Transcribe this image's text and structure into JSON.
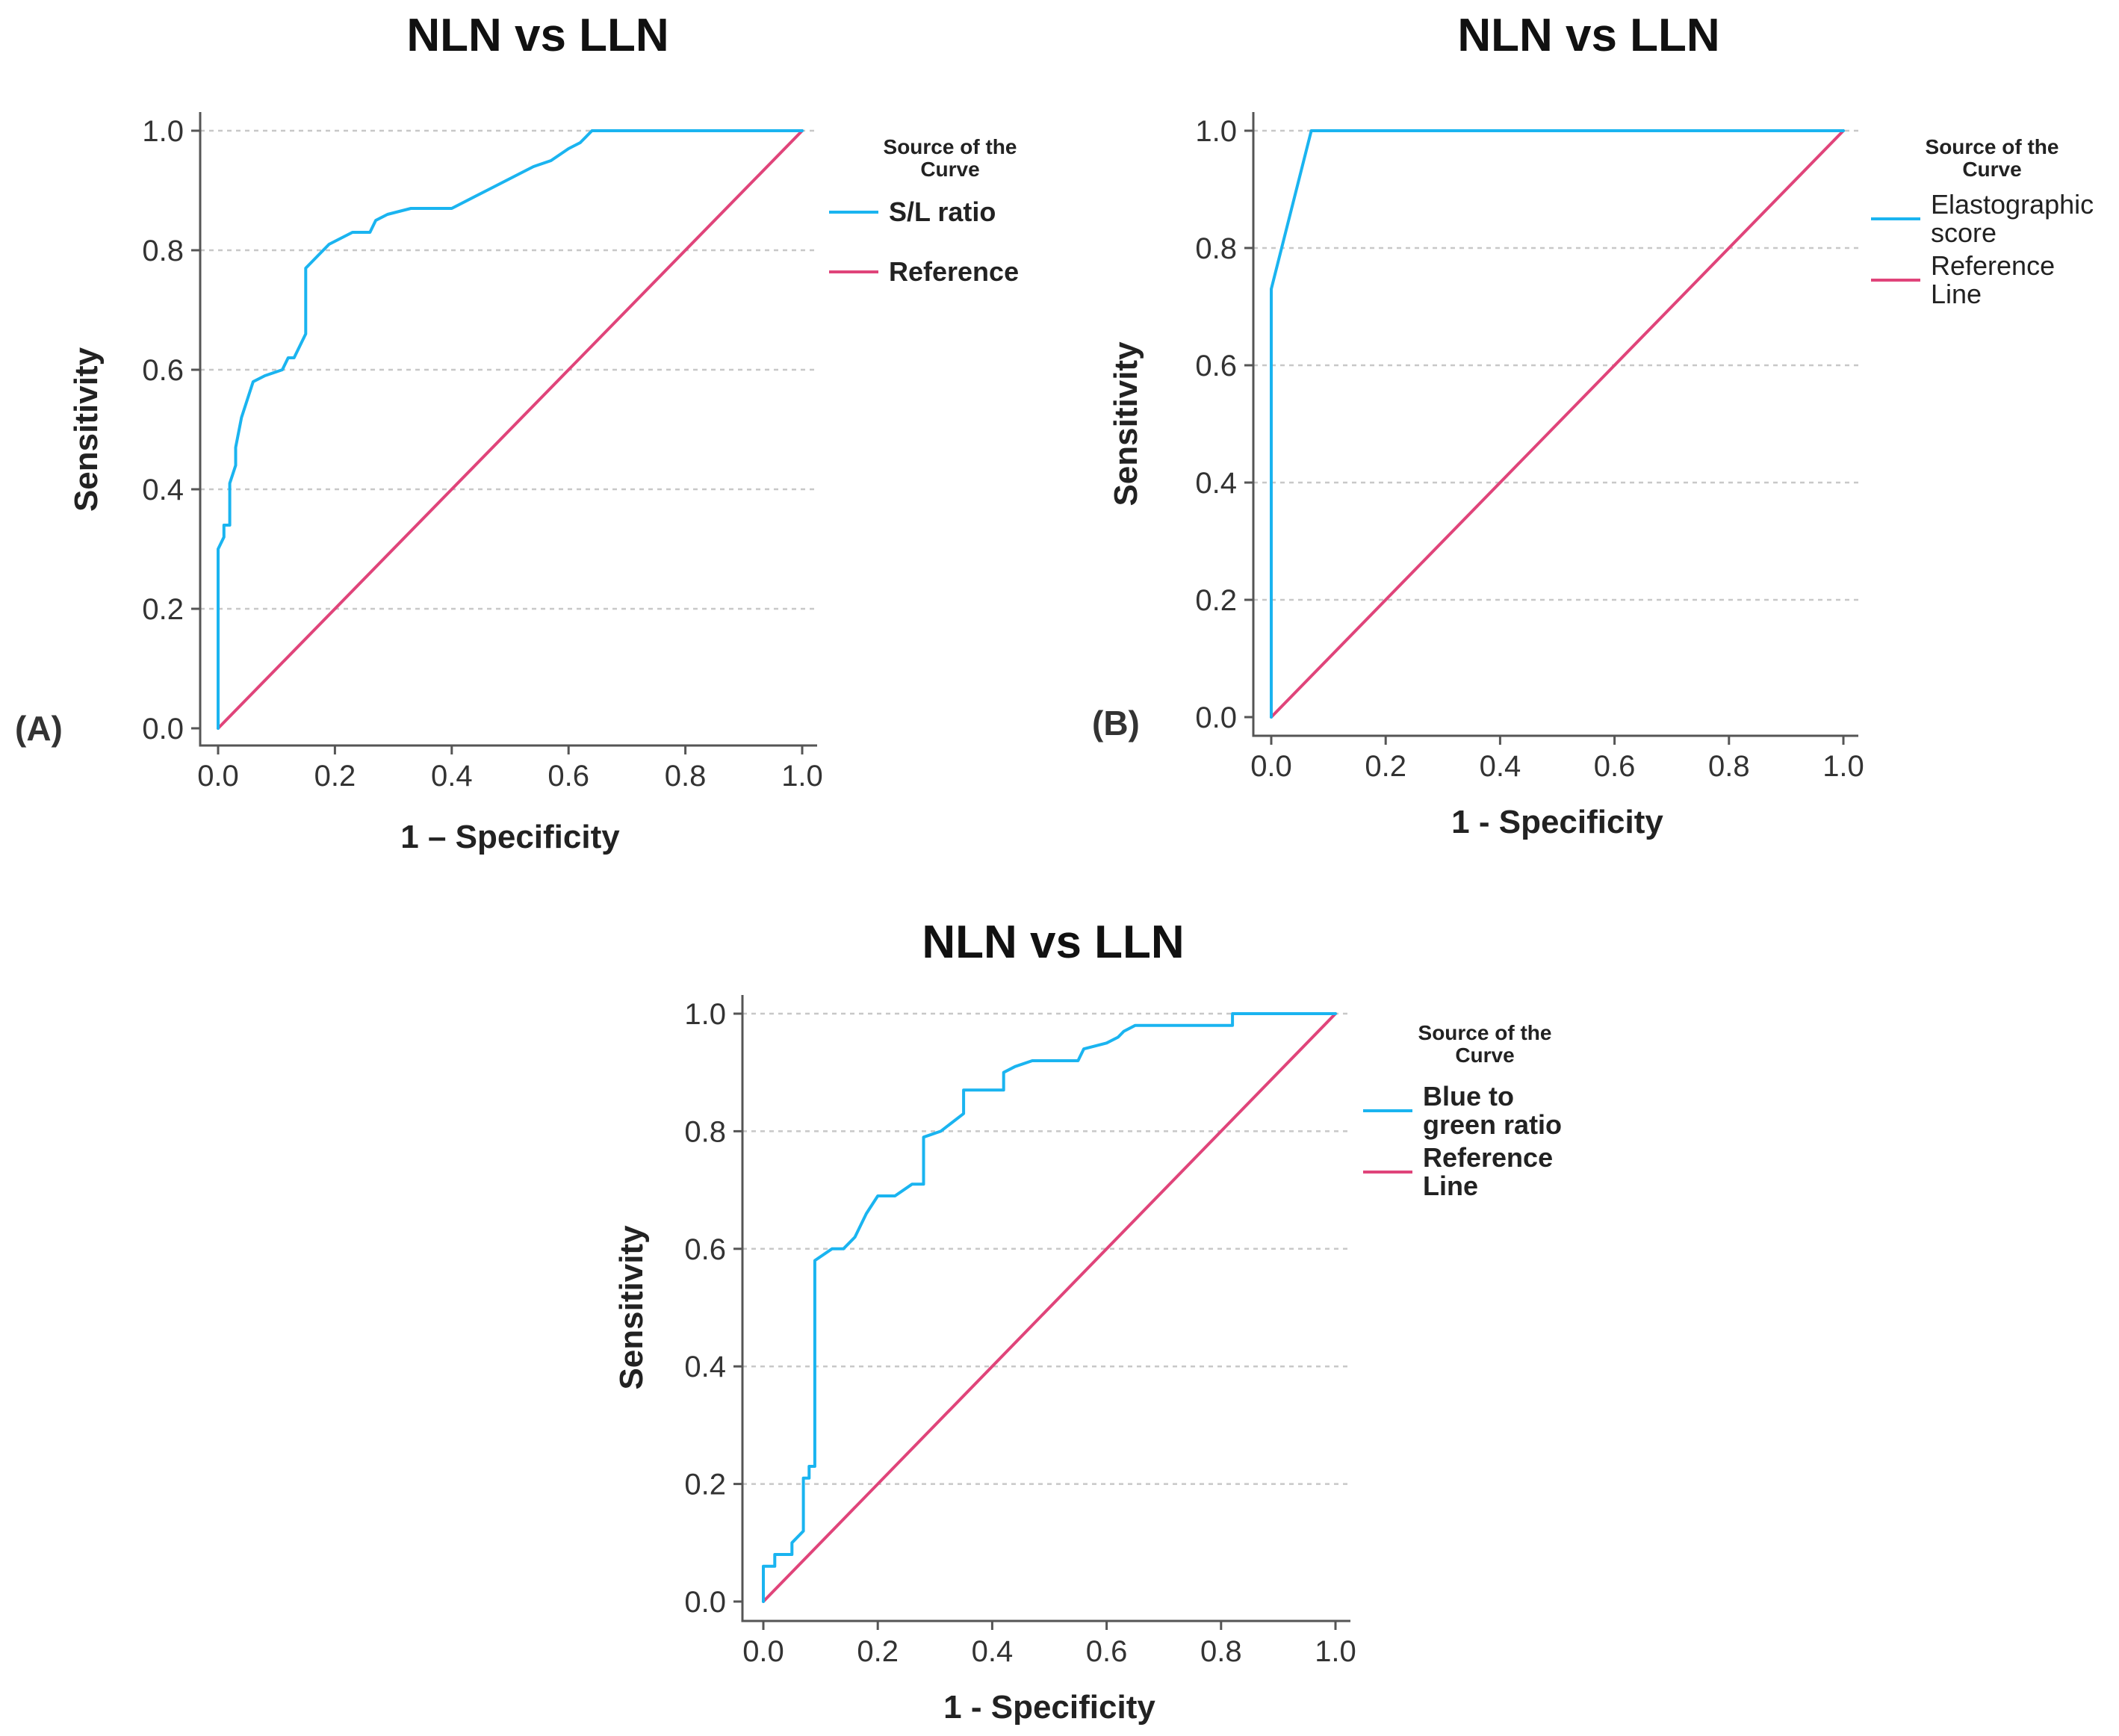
{
  "colors": {
    "roc_curve": "#1ab4f0",
    "reference_line": "#e0447a"
  },
  "chart_data": [
    {
      "id": "A",
      "panel_label": "(A)",
      "type": "line",
      "title": "NLN vs LLN",
      "xlabel": "1 – Specificity",
      "ylabel": "Sensitivity",
      "xlim": [
        0,
        1
      ],
      "ylim": [
        0,
        1
      ],
      "xticks": [
        "0.0",
        "0.2",
        "0.4",
        "0.6",
        "0.8",
        "1.0"
      ],
      "yticks": [
        "0.0",
        "0.2",
        "0.4",
        "0.6",
        "0.8",
        "1.0"
      ],
      "grid": "horizontal-dashed",
      "legend_title": [
        "Source of the",
        "Curve"
      ],
      "legend_bold": true,
      "series": [
        {
          "name": "S/L ratio",
          "label_lines": [
            "S/L ratio"
          ],
          "color": "#1ab4f0",
          "x": [
            0,
            0,
            0.01,
            0.01,
            0.02,
            0.02,
            0.03,
            0.03,
            0.04,
            0.05,
            0.06,
            0.08,
            0.11,
            0.12,
            0.13,
            0.14,
            0.15,
            0.15,
            0.17,
            0.19,
            0.23,
            0.26,
            0.27,
            0.29,
            0.33,
            0.4,
            0.46,
            0.52,
            0.54,
            0.57,
            0.6,
            0.62,
            0.63,
            0.64,
            1.0
          ],
          "y": [
            0,
            0.3,
            0.32,
            0.34,
            0.34,
            0.41,
            0.44,
            0.47,
            0.52,
            0.55,
            0.58,
            0.59,
            0.6,
            0.62,
            0.62,
            0.64,
            0.66,
            0.77,
            0.79,
            0.81,
            0.83,
            0.83,
            0.85,
            0.86,
            0.87,
            0.87,
            0.9,
            0.93,
            0.94,
            0.95,
            0.97,
            0.98,
            0.99,
            1.0,
            1.0
          ]
        },
        {
          "name": "Reference",
          "label_lines": [
            "Reference"
          ],
          "color": "#e0447a",
          "x": [
            0,
            1
          ],
          "y": [
            0,
            1
          ]
        }
      ]
    },
    {
      "id": "B",
      "panel_label": "(B)",
      "type": "line",
      "title": "NLN vs LLN",
      "xlabel": "1 - Specificity",
      "ylabel": "Sensitivity",
      "xlim": [
        0,
        1
      ],
      "ylim": [
        0,
        1
      ],
      "xticks": [
        "0.0",
        "0.2",
        "0.4",
        "0.6",
        "0.8",
        "1.0"
      ],
      "yticks": [
        "0.0",
        "0.2",
        "0.4",
        "0.6",
        "0.8",
        "1.0"
      ],
      "grid": "horizontal-dashed",
      "legend_title": [
        "Source of the",
        "Curve"
      ],
      "legend_bold": false,
      "series": [
        {
          "name": "Elastographic score",
          "label_lines": [
            "Elastographic",
            "score"
          ],
          "color": "#1ab4f0",
          "x": [
            0,
            0,
            0.07,
            1.0
          ],
          "y": [
            0,
            0.73,
            1.0,
            1.0
          ]
        },
        {
          "name": "Reference Line",
          "label_lines": [
            "Reference",
            "Line"
          ],
          "color": "#e0447a",
          "x": [
            0,
            1
          ],
          "y": [
            0,
            1
          ]
        }
      ]
    },
    {
      "id": "C",
      "panel_label": "",
      "type": "line",
      "title": "NLN vs LLN",
      "xlabel": "1 - Specificity",
      "ylabel": "Sensitivity",
      "xlim": [
        0,
        1
      ],
      "ylim": [
        0,
        1
      ],
      "xticks": [
        "0.0",
        "0.2",
        "0.4",
        "0.6",
        "0.8",
        "1.0"
      ],
      "yticks": [
        "0.0",
        "0.2",
        "0.4",
        "0.6",
        "0.8",
        "1.0"
      ],
      "grid": "horizontal-dashed",
      "legend_title": [
        "Source of the",
        "Curve"
      ],
      "legend_bold": true,
      "series": [
        {
          "name": "Blue to green ratio",
          "label_lines": [
            "Blue to",
            "green ratio"
          ],
          "color": "#1ab4f0",
          "x": [
            0,
            0,
            0.01,
            0.02,
            0.02,
            0.05,
            0.05,
            0.07,
            0.07,
            0.08,
            0.08,
            0.09,
            0.09,
            0.12,
            0.14,
            0.16,
            0.18,
            0.2,
            0.23,
            0.26,
            0.28,
            0.28,
            0.31,
            0.35,
            0.35,
            0.37,
            0.42,
            0.42,
            0.44,
            0.47,
            0.55,
            0.56,
            0.6,
            0.62,
            0.63,
            0.65,
            0.82,
            0.82,
            1.0
          ],
          "y": [
            0,
            0.06,
            0.06,
            0.06,
            0.08,
            0.08,
            0.1,
            0.12,
            0.21,
            0.21,
            0.23,
            0.23,
            0.58,
            0.6,
            0.6,
            0.62,
            0.66,
            0.69,
            0.69,
            0.71,
            0.71,
            0.79,
            0.8,
            0.83,
            0.87,
            0.87,
            0.87,
            0.9,
            0.91,
            0.92,
            0.92,
            0.94,
            0.95,
            0.96,
            0.97,
            0.98,
            0.98,
            1.0,
            1.0
          ]
        },
        {
          "name": "Reference Line",
          "label_lines": [
            "Reference",
            "Line"
          ],
          "color": "#e0447a",
          "x": [
            0,
            1
          ],
          "y": [
            0,
            1
          ]
        }
      ]
    }
  ]
}
